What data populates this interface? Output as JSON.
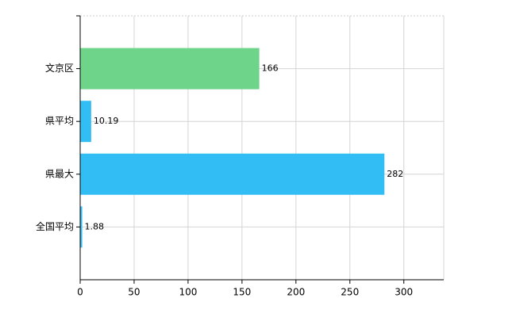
{
  "chart_data": {
    "type": "barh",
    "categories": [
      "文京区",
      "県平均",
      "県最大",
      "全国平均"
    ],
    "values": [
      166,
      10.19,
      282,
      1.88
    ],
    "colors": [
      "#6dd48a",
      "#33bdf5",
      "#33bdf5",
      "#33bdf5"
    ],
    "xlim": [
      0,
      337
    ],
    "xticks": [
      0,
      50,
      100,
      150,
      200,
      250,
      300
    ],
    "grid": true
  }
}
